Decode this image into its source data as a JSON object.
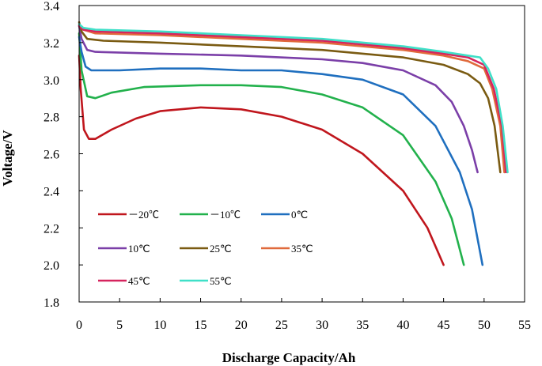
{
  "chart_data": {
    "type": "line",
    "title": "",
    "xlabel": "Discharge Capacity/Ah",
    "ylabel": "Voltage/V",
    "xlim": [
      0,
      55
    ],
    "ylim": [
      1.8,
      3.4
    ],
    "x_ticks": [
      "0",
      "5",
      "10",
      "15",
      "20",
      "25",
      "30",
      "35",
      "40",
      "45",
      "50",
      "55"
    ],
    "y_ticks": [
      "1.8",
      "2.0",
      "2.2",
      "2.4",
      "2.6",
      "2.8",
      "3.0",
      "3.2",
      "3.4"
    ],
    "grid": false,
    "legend_position": "inside-lower-left",
    "series": [
      {
        "name": "－20℃",
        "color": "#c0161d",
        "points": [
          [
            0,
            3.13
          ],
          [
            0.2,
            2.95
          ],
          [
            0.6,
            2.73
          ],
          [
            1.2,
            2.68
          ],
          [
            2,
            2.68
          ],
          [
            4,
            2.73
          ],
          [
            7,
            2.79
          ],
          [
            10,
            2.83
          ],
          [
            15,
            2.85
          ],
          [
            20,
            2.84
          ],
          [
            25,
            2.8
          ],
          [
            30,
            2.73
          ],
          [
            35,
            2.6
          ],
          [
            40,
            2.4
          ],
          [
            43,
            2.2
          ],
          [
            45,
            2.0
          ]
        ]
      },
      {
        "name": "－10℃",
        "color": "#22b14c",
        "points": [
          [
            0,
            3.25
          ],
          [
            0.3,
            3.05
          ],
          [
            1,
            2.91
          ],
          [
            2,
            2.9
          ],
          [
            4,
            2.93
          ],
          [
            8,
            2.96
          ],
          [
            15,
            2.97
          ],
          [
            20,
            2.97
          ],
          [
            25,
            2.96
          ],
          [
            30,
            2.92
          ],
          [
            35,
            2.85
          ],
          [
            40,
            2.7
          ],
          [
            44,
            2.45
          ],
          [
            46,
            2.25
          ],
          [
            47.5,
            2.0
          ]
        ]
      },
      {
        "name": "0℃",
        "color": "#1f6fbf",
        "points": [
          [
            0,
            3.23
          ],
          [
            0.3,
            3.15
          ],
          [
            0.8,
            3.07
          ],
          [
            1.5,
            3.05
          ],
          [
            5,
            3.05
          ],
          [
            10,
            3.06
          ],
          [
            15,
            3.06
          ],
          [
            20,
            3.05
          ],
          [
            25,
            3.05
          ],
          [
            30,
            3.03
          ],
          [
            35,
            3.0
          ],
          [
            40,
            2.92
          ],
          [
            44,
            2.75
          ],
          [
            47,
            2.5
          ],
          [
            48.5,
            2.3
          ],
          [
            49.8,
            2.0
          ]
        ]
      },
      {
        "name": "10℃",
        "color": "#7b3fa8",
        "points": [
          [
            0,
            3.29
          ],
          [
            0.3,
            3.22
          ],
          [
            1,
            3.16
          ],
          [
            2,
            3.15
          ],
          [
            10,
            3.14
          ],
          [
            20,
            3.13
          ],
          [
            30,
            3.11
          ],
          [
            35,
            3.09
          ],
          [
            40,
            3.05
          ],
          [
            44,
            2.97
          ],
          [
            46,
            2.88
          ],
          [
            47.5,
            2.75
          ],
          [
            48.5,
            2.62
          ],
          [
            49.2,
            2.5
          ]
        ]
      },
      {
        "name": "25℃",
        "color": "#7a5b12",
        "points": [
          [
            0,
            3.31
          ],
          [
            0.3,
            3.26
          ],
          [
            1,
            3.22
          ],
          [
            3,
            3.21
          ],
          [
            10,
            3.2
          ],
          [
            20,
            3.18
          ],
          [
            30,
            3.16
          ],
          [
            40,
            3.12
          ],
          [
            45,
            3.08
          ],
          [
            48,
            3.03
          ],
          [
            49.5,
            2.98
          ],
          [
            50.5,
            2.9
          ],
          [
            51.3,
            2.75
          ],
          [
            52,
            2.5
          ]
        ]
      },
      {
        "name": "35℃",
        "color": "#e06a3c",
        "points": [
          [
            0,
            3.3
          ],
          [
            0.5,
            3.27
          ],
          [
            2,
            3.25
          ],
          [
            10,
            3.24
          ],
          [
            20,
            3.22
          ],
          [
            30,
            3.2
          ],
          [
            40,
            3.16
          ],
          [
            45,
            3.13
          ],
          [
            48,
            3.1
          ],
          [
            50,
            3.06
          ],
          [
            51,
            2.95
          ],
          [
            52,
            2.75
          ],
          [
            52.5,
            2.5
          ]
        ]
      },
      {
        "name": "45℃",
        "color": "#d6245e",
        "points": [
          [
            0,
            3.29
          ],
          [
            0.5,
            3.27
          ],
          [
            2,
            3.26
          ],
          [
            10,
            3.25
          ],
          [
            20,
            3.23
          ],
          [
            30,
            3.21
          ],
          [
            40,
            3.17
          ],
          [
            45,
            3.14
          ],
          [
            48,
            3.12
          ],
          [
            50,
            3.08
          ],
          [
            51.2,
            2.95
          ],
          [
            52.2,
            2.75
          ],
          [
            52.7,
            2.5
          ]
        ]
      },
      {
        "name": "55℃",
        "color": "#3fe0c8",
        "points": [
          [
            0,
            3.3
          ],
          [
            0.5,
            3.28
          ],
          [
            2,
            3.27
          ],
          [
            10,
            3.26
          ],
          [
            20,
            3.24
          ],
          [
            30,
            3.22
          ],
          [
            40,
            3.18
          ],
          [
            45,
            3.15
          ],
          [
            48,
            3.13
          ],
          [
            49.5,
            3.12
          ],
          [
            50.5,
            3.06
          ],
          [
            51.5,
            2.95
          ],
          [
            52.3,
            2.75
          ],
          [
            52.9,
            2.5
          ]
        ]
      }
    ]
  }
}
